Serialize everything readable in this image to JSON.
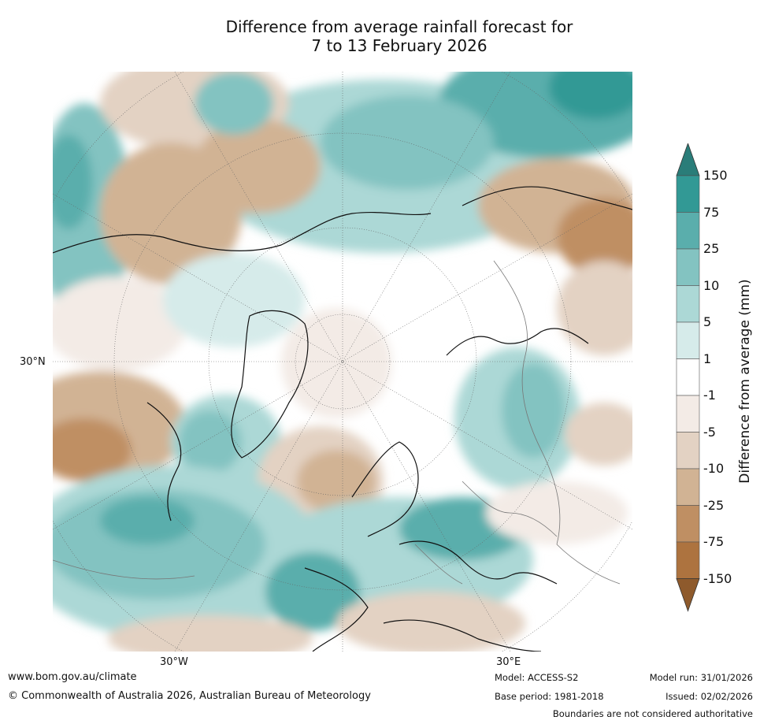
{
  "title_line1": "Difference from average rainfall forecast for",
  "title_line2": "7 to 13 February 2026",
  "axis_labels": {
    "lat_30n": "30°N",
    "lon_30w": "30°W",
    "lon_30e": "30°E"
  },
  "colorbar": {
    "title": "Difference from average (mm)",
    "ticks": [
      "150",
      "75",
      "25",
      "10",
      "5",
      "1",
      "-1",
      "-5",
      "-10",
      "-25",
      "-75",
      "-150"
    ],
    "colors": [
      "#2a7d79",
      "#329995",
      "#5aaeac",
      "#83c3c1",
      "#acd8d6",
      "#d6ebea",
      "#ffffff",
      "#f3ebe6",
      "#e3d2c3",
      "#d1b394",
      "#bf8f63",
      "#ad733f",
      "#8e5a2c"
    ]
  },
  "footer": {
    "website": "www.bom.gov.au/climate",
    "copyright": "© Commonwealth of Australia 2026, Australian Bureau of Meteorology",
    "model": "Model: ACCESS-S2",
    "base_period": "Base period: 1981-2018",
    "model_run": "Model run: 31/01/2026",
    "issued": "Issued: 02/02/2026",
    "disclaimer": "Boundaries are not considered authoritative"
  }
}
